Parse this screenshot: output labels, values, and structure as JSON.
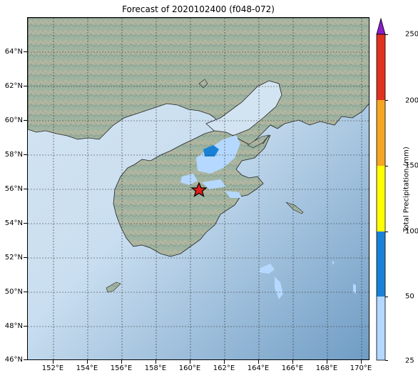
{
  "title": "Forecast of 2020102400 (f048-072)",
  "lat_labels": [
    "64°N",
    "62°N",
    "60°N",
    "58°N",
    "56°N",
    "54°N",
    "52°N",
    "50°N",
    "48°N",
    "46°N"
  ],
  "lon_labels": [
    "152°E",
    "154°E",
    "156°E",
    "158°E",
    "160°E",
    "162°E",
    "164°E",
    "166°E",
    "168°E",
    "170°E"
  ],
  "map_extent": {
    "lon_min": 150.5,
    "lon_max": 170.5,
    "lat_min": 46,
    "lat_max": 66
  },
  "station": {
    "lon": 160.6,
    "lat": 56.0,
    "marker": "red-star"
  },
  "colorbar": {
    "title": "Total Precipitation (mm)",
    "tick_labels": [
      "25",
      "50",
      "100",
      "150",
      "200",
      "250"
    ],
    "bins": [
      {
        "from": 25,
        "to": 50,
        "color": "#b4d8ff"
      },
      {
        "from": 50,
        "to": 100,
        "color": "#1a82d6"
      },
      {
        "from": 100,
        "to": 150,
        "color": "#ffff00"
      },
      {
        "from": 150,
        "to": 200,
        "color": "#f5a623"
      },
      {
        "from": 200,
        "to": 250,
        "color": "#e0321e"
      }
    ],
    "extend_color": "#8a1ec8"
  },
  "colors": {
    "ocean": "#7fa9cc",
    "land": "#9aae9c",
    "coast": "#222222"
  }
}
